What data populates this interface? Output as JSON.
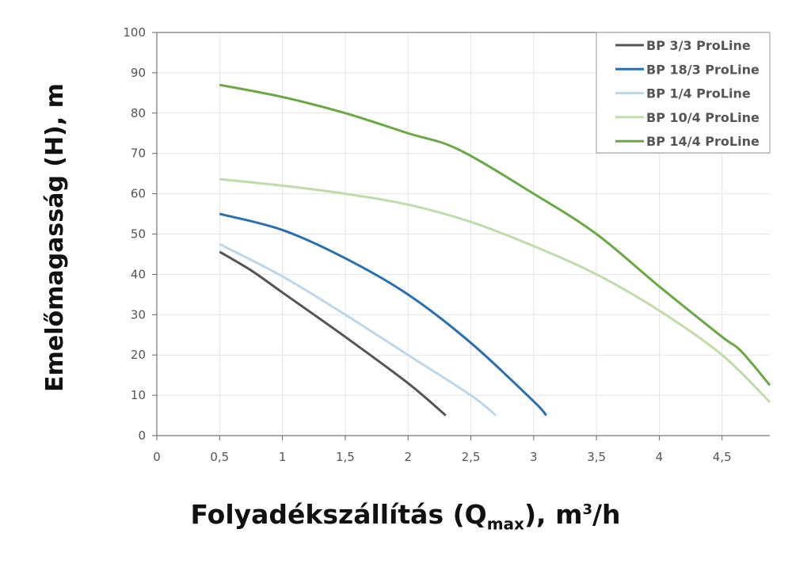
{
  "chart_data": {
    "type": "line",
    "xlabel_parts": {
      "pre": "Folyadékszállítás (Q",
      "sub": "max",
      "mid": "), m",
      "sup": "3",
      "post": "/h"
    },
    "ylabel": "Emelőmagasság (H), m",
    "xlim": [
      0,
      4.88
    ],
    "ylim": [
      0,
      100
    ],
    "x_ticks": [
      0,
      0.5,
      1,
      1.5,
      2,
      2.5,
      3,
      3.5,
      4,
      4.5
    ],
    "x_tick_labels": [
      "0",
      "0,5",
      "1",
      "1,5",
      "2",
      "2,5",
      "3",
      "3,5",
      "4",
      "4,5"
    ],
    "y_ticks": [
      0,
      10,
      20,
      30,
      40,
      50,
      60,
      70,
      80,
      90,
      100
    ],
    "y_tick_labels": [
      "0",
      "10",
      "20",
      "30",
      "40",
      "50",
      "60",
      "70",
      "80",
      "90",
      "100"
    ],
    "grid": true,
    "legend_position": "top-right",
    "series": [
      {
        "name": "BP 3/3 ProLine",
        "color": "#555555",
        "points": [
          [
            0.5,
            45.6
          ],
          [
            0.75,
            41
          ],
          [
            1,
            35.5
          ],
          [
            1.5,
            24.5
          ],
          [
            2,
            13
          ],
          [
            2.3,
            5
          ]
        ]
      },
      {
        "name": "BP 18/3 ProLine",
        "color": "#2a6fb0",
        "points": [
          [
            0.5,
            55
          ],
          [
            1,
            51
          ],
          [
            1.5,
            44
          ],
          [
            2,
            35
          ],
          [
            2.5,
            23
          ],
          [
            3,
            8.5
          ],
          [
            3.1,
            5
          ]
        ]
      },
      {
        "name": "BP 1/4 ProLine",
        "color": "#bcd6ec",
        "points": [
          [
            0.5,
            47.5
          ],
          [
            1,
            39.5
          ],
          [
            1.5,
            30
          ],
          [
            2,
            20
          ],
          [
            2.5,
            10
          ],
          [
            2.7,
            5
          ]
        ]
      },
      {
        "name": "BP 10/4 ProLine",
        "color": "#bfdcaa",
        "points": [
          [
            0.5,
            63.6
          ],
          [
            1,
            62
          ],
          [
            1.5,
            60
          ],
          [
            2,
            57.3
          ],
          [
            2.5,
            53
          ],
          [
            3,
            47
          ],
          [
            3.5,
            40
          ],
          [
            4,
            31
          ],
          [
            4.5,
            20
          ],
          [
            4.88,
            8.3
          ]
        ]
      },
      {
        "name": "BP 14/4 ProLine",
        "color": "#6aa843",
        "points": [
          [
            0.5,
            87
          ],
          [
            1,
            84
          ],
          [
            1.5,
            80
          ],
          [
            2,
            75
          ],
          [
            2.4,
            71
          ],
          [
            3,
            60
          ],
          [
            3.5,
            50
          ],
          [
            4,
            37
          ],
          [
            4.5,
            24.5
          ],
          [
            4.65,
            21
          ],
          [
            4.88,
            12.5
          ]
        ]
      }
    ]
  }
}
